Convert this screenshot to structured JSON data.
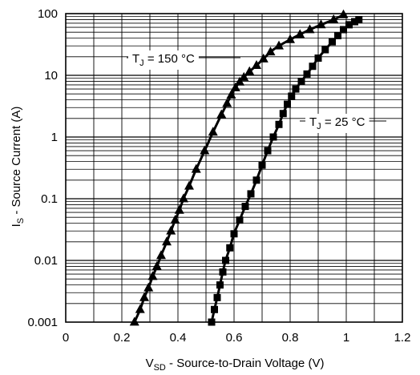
{
  "chart_data": {
    "type": "scatter",
    "x": {
      "label_main": "V",
      "label_sub": "SD",
      "label_rest": " - Source-to-Drain Voltage (V)",
      "range": [
        0,
        1.2
      ],
      "ticks": [
        0,
        0.2,
        0.4,
        0.6,
        0.8,
        1,
        1.2
      ],
      "tick_labels": [
        "0",
        "0.2",
        "0.4",
        "0.6",
        "0.8",
        "1",
        "1.2"
      ],
      "grid_step": 0.1
    },
    "y": {
      "label_main": "I",
      "label_sub": "S",
      "label_rest": " - Source Current (A)",
      "scale": "log",
      "range": [
        0.001,
        100
      ],
      "ticks": [
        0.001,
        0.01,
        0.1,
        1,
        10,
        100
      ],
      "tick_labels": [
        "0.001",
        "0.01",
        "0.1",
        "1",
        "10",
        "100"
      ]
    },
    "grid": true,
    "series": [
      {
        "name": "TJ = 150 °C",
        "label_pre": "T",
        "label_sub": "J",
        "label_post": " = 150 °C",
        "marker": "triangle",
        "points": [
          [
            0.245,
            0.001
          ],
          [
            0.265,
            0.0016
          ],
          [
            0.28,
            0.0025
          ],
          [
            0.295,
            0.0036
          ],
          [
            0.31,
            0.0055
          ],
          [
            0.325,
            0.008
          ],
          [
            0.34,
            0.012
          ],
          [
            0.36,
            0.02
          ],
          [
            0.375,
            0.03
          ],
          [
            0.39,
            0.045
          ],
          [
            0.405,
            0.065
          ],
          [
            0.42,
            0.1
          ],
          [
            0.44,
            0.16
          ],
          [
            0.465,
            0.3
          ],
          [
            0.495,
            0.6
          ],
          [
            0.525,
            1.2
          ],
          [
            0.555,
            2.3
          ],
          [
            0.575,
            3.5
          ],
          [
            0.59,
            4.8
          ],
          [
            0.605,
            6.3
          ],
          [
            0.62,
            7.8
          ],
          [
            0.635,
            9.3
          ],
          [
            0.655,
            11.5
          ],
          [
            0.68,
            14.5
          ],
          [
            0.705,
            18.5
          ],
          [
            0.73,
            24
          ],
          [
            0.76,
            30
          ],
          [
            0.8,
            38
          ],
          [
            0.835,
            46
          ],
          [
            0.87,
            55
          ],
          [
            0.91,
            66
          ],
          [
            0.955,
            80
          ],
          [
            0.99,
            96
          ]
        ]
      },
      {
        "name": "TJ = 25 °C",
        "label_pre": "T",
        "label_sub": "J",
        "label_post": " = 25 °C",
        "marker": "square",
        "points": [
          [
            0.52,
            0.001
          ],
          [
            0.53,
            0.0016
          ],
          [
            0.54,
            0.0025
          ],
          [
            0.55,
            0.004
          ],
          [
            0.56,
            0.0065
          ],
          [
            0.57,
            0.01
          ],
          [
            0.585,
            0.016
          ],
          [
            0.6,
            0.027
          ],
          [
            0.62,
            0.045
          ],
          [
            0.64,
            0.075
          ],
          [
            0.66,
            0.12
          ],
          [
            0.68,
            0.2
          ],
          [
            0.7,
            0.35
          ],
          [
            0.72,
            0.6
          ],
          [
            0.74,
            1.0
          ],
          [
            0.76,
            1.6
          ],
          [
            0.775,
            2.4
          ],
          [
            0.79,
            3.4
          ],
          [
            0.805,
            4.6
          ],
          [
            0.82,
            6.0
          ],
          [
            0.84,
            8.0
          ],
          [
            0.86,
            10.5
          ],
          [
            0.88,
            14
          ],
          [
            0.9,
            19
          ],
          [
            0.925,
            26
          ],
          [
            0.95,
            35
          ],
          [
            0.97,
            44
          ],
          [
            0.99,
            55
          ],
          [
            1.01,
            66
          ],
          [
            1.03,
            74
          ],
          [
            1.045,
            80
          ]
        ]
      }
    ]
  }
}
